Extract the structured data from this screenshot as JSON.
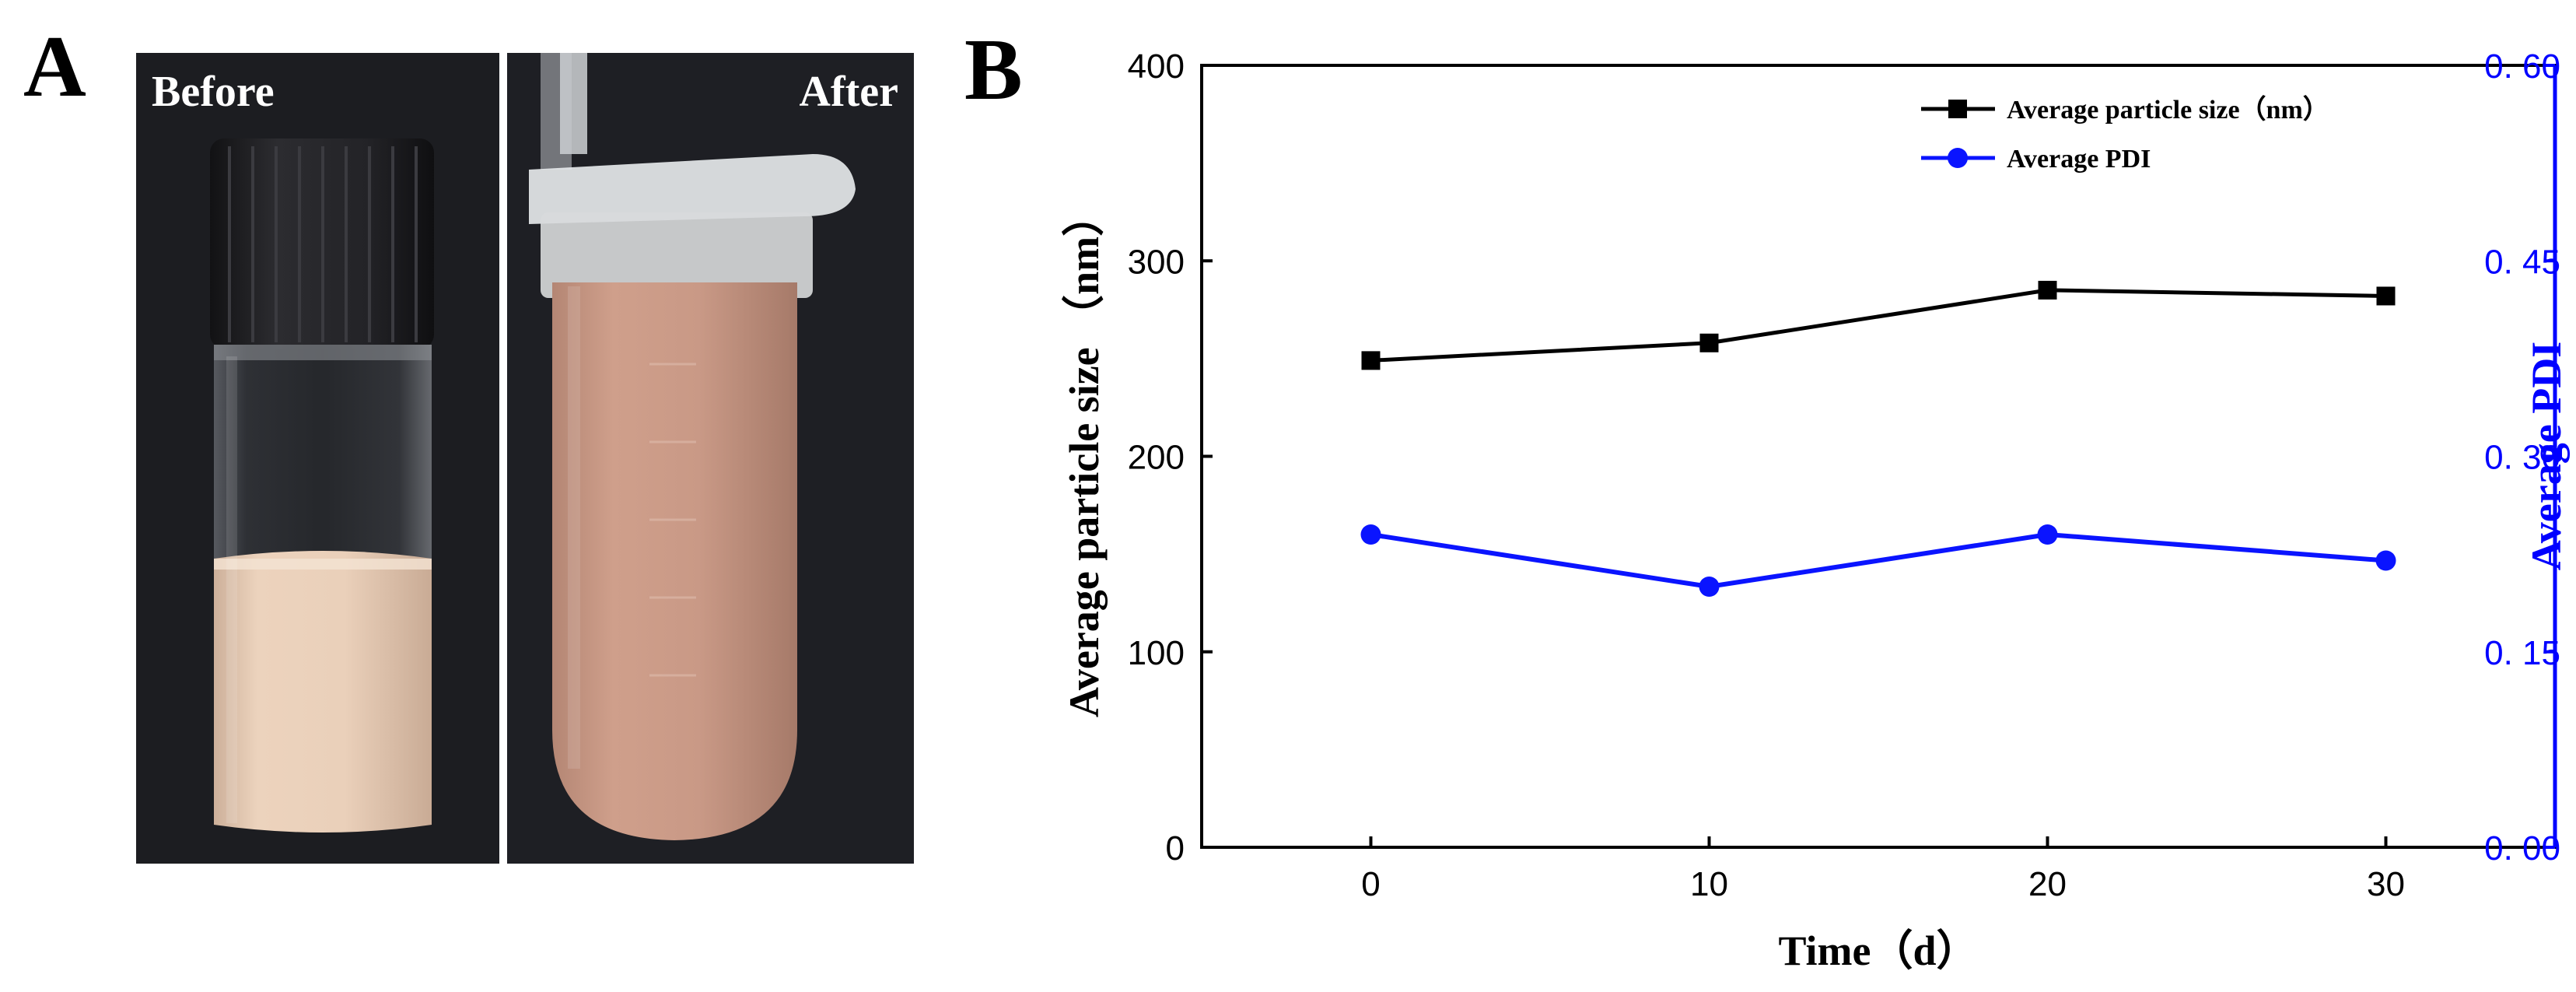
{
  "panel_a": {
    "letter": "A",
    "before_label": "Before",
    "after_label": "After",
    "colors": {
      "background": "#1c1d21",
      "divider": "#ffffff",
      "cap": "#1e1e21",
      "emulsion_vial": "#e8cdb6",
      "emulsion_tube": "#c89a86",
      "label_text": "#ffffff"
    }
  },
  "chart_data": {
    "panel_letter": "B",
    "type": "line",
    "x": [
      0,
      10,
      20,
      30
    ],
    "xlim": [
      -5,
      35
    ],
    "xticks": [
      0,
      10,
      20,
      30
    ],
    "xlabel": "Time（d）",
    "y_left": {
      "label": "Average particle size （nm）",
      "lim": [
        0,
        400
      ],
      "ticks": [
        "0",
        "100",
        "200",
        "300",
        "400"
      ],
      "color": "#000000"
    },
    "y_right": {
      "label": "Average PDI",
      "lim": [
        0,
        0.6
      ],
      "ticks": [
        "0. 00",
        "0. 15",
        "0. 30",
        "0. 45",
        "0. 60"
      ],
      "color": "#0000ff"
    },
    "series": [
      {
        "name": "Average particle size（nm）",
        "axis": "left",
        "marker": "square",
        "color": "#000000",
        "values": [
          249,
          258,
          285,
          282
        ]
      },
      {
        "name": "Average PDI",
        "axis": "right",
        "marker": "circle",
        "color": "#0a14ff",
        "values": [
          0.24,
          0.2,
          0.24,
          0.22
        ]
      }
    ],
    "legend_position": "top-right",
    "grid": false
  }
}
